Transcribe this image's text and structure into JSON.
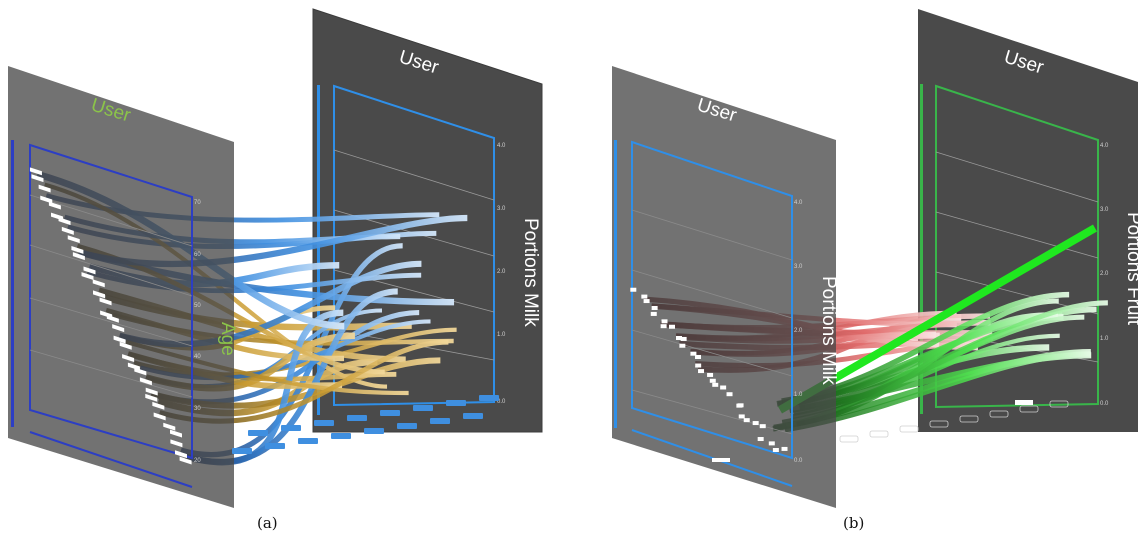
{
  "figure_a": {
    "caption": "(a)",
    "left_panel": {
      "title": "User",
      "axis_label": "Age",
      "ticks": [
        "70",
        "60",
        "50",
        "40",
        "30",
        "20"
      ]
    },
    "right_panel": {
      "title": "User",
      "axis_label": "Portions Milk",
      "ticks": [
        "4.0",
        "3.0",
        "2.0",
        "1.0",
        "0.0"
      ]
    }
  },
  "figure_b": {
    "caption": "(b)",
    "left_panel": {
      "title": "User",
      "axis_label": "Portions Milk",
      "ticks": [
        "4.0",
        "3.0",
        "2.0",
        "1.0",
        "0.0"
      ]
    },
    "right_panel": {
      "title": "User",
      "axis_label": "Portions Fruit",
      "ticks": [
        "4.0",
        "3.0",
        "2.0",
        "1.0",
        "0.0"
      ]
    }
  },
  "colors": {
    "panel": "#4a4a4a",
    "frame_dark_blue": "#2c3ec4",
    "frame_blue": "#2f8fe8",
    "frame_green": "#39b54a",
    "title_green": "#8bc34a",
    "link_gold": "#c99a2e",
    "link_blue": "#4a9be8",
    "link_red": "#d95656",
    "link_green": "#3fe03f"
  }
}
